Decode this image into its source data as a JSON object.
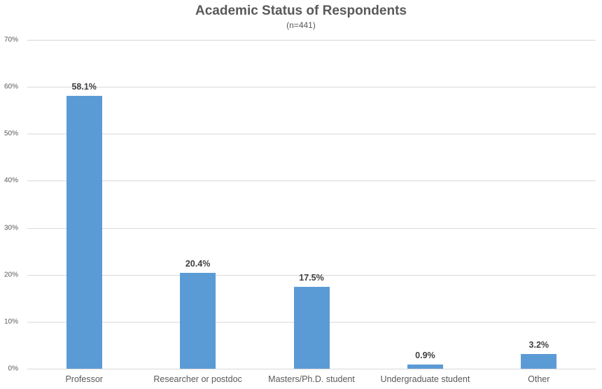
{
  "chart_data": {
    "type": "bar",
    "title": "Academic Status of Respondents",
    "subtitle": "(n=441)",
    "xlabel": "",
    "ylabel": "",
    "categories": [
      "Professor",
      "Researcher or postdoc",
      "Masters/Ph.D. student",
      "Undergraduate student",
      "Other"
    ],
    "values": [
      58.1,
      20.4,
      17.5,
      0.9,
      3.2
    ],
    "data_labels": [
      "58.1%",
      "20.4%",
      "17.5%",
      "0.9%",
      "3.2%"
    ],
    "ylim": [
      0,
      70
    ],
    "yticks": [
      0,
      10,
      20,
      30,
      40,
      50,
      60,
      70
    ],
    "ytick_labels": [
      "0%",
      "10%",
      "20%",
      "30%",
      "40%",
      "50%",
      "60%",
      "70%"
    ],
    "grid": true,
    "legend": null,
    "bar_color": "#5B9BD5"
  }
}
